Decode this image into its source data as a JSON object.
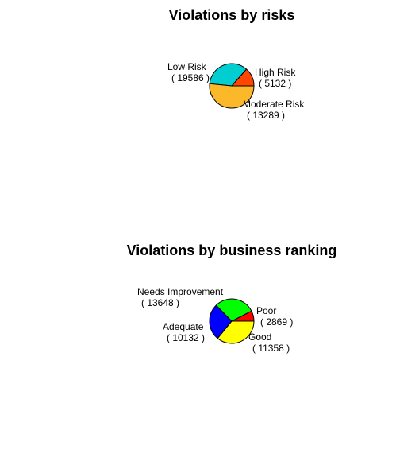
{
  "chart_data": [
    {
      "type": "pie",
      "title": "Violations by risks",
      "slices": [
        {
          "label": "High Risk",
          "count_label": "( 5132 )",
          "value": 5132,
          "color": "#FF4500"
        },
        {
          "label": "Moderate Risk",
          "count_label": "( 13289 )",
          "value": 13289,
          "color": "#00CED1"
        },
        {
          "label": "Low Risk",
          "count_label": "( 19586 )",
          "value": 19586,
          "color": "#FBB829"
        }
      ]
    },
    {
      "type": "pie",
      "title": "Violations by business ranking",
      "slices": [
        {
          "label": "Poor",
          "count_label": "( 2869 )",
          "value": 2869,
          "color": "#FF0000"
        },
        {
          "label": "Good",
          "count_label": "( 11358 )",
          "value": 11358,
          "color": "#00FF00"
        },
        {
          "label": "Adequate",
          "count_label": "( 10132 )",
          "value": 10132,
          "color": "#0000FF"
        },
        {
          "label": "Needs Improvement",
          "count_label": "( 13648 )",
          "value": 13648,
          "color": "#FFFF00"
        }
      ]
    }
  ]
}
